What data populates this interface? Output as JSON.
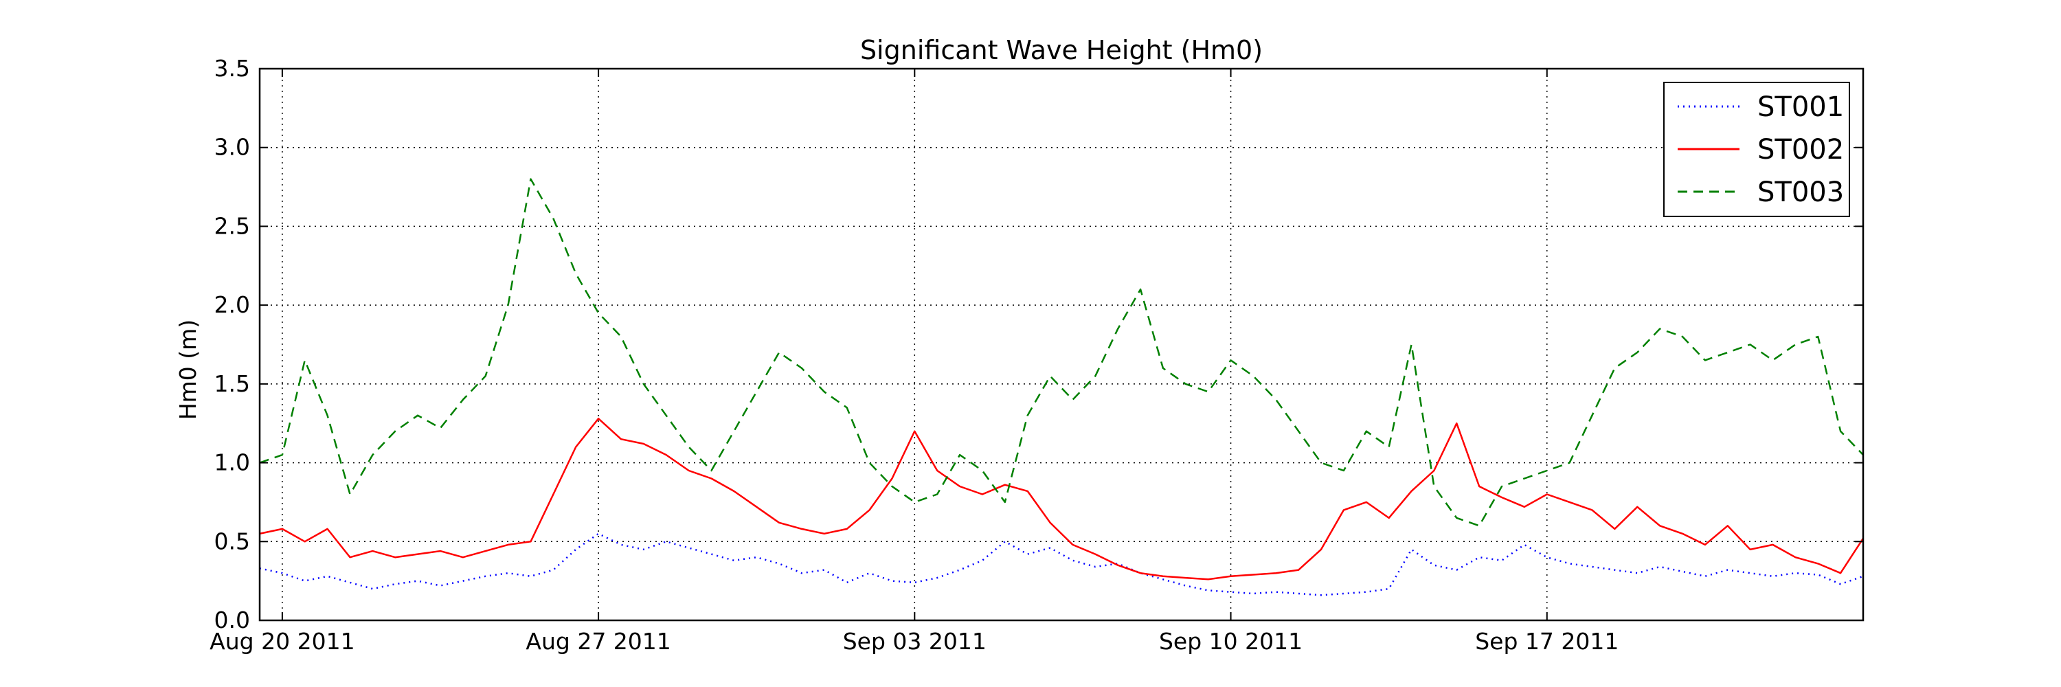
{
  "chart_data": {
    "type": "line",
    "title": "Significant Wave Height (Hm0)",
    "xlabel": "",
    "ylabel": "Hm0 (m)",
    "ylim": [
      0,
      3.5
    ],
    "y_ticks": [
      "0.0",
      "0.5",
      "1.0",
      "1.5",
      "2.0",
      "2.5",
      "3.0",
      "3.5"
    ],
    "xlim": [
      "2011-08-19T12:00",
      "2011-09-24T00:00"
    ],
    "x_ticks": [
      {
        "date": "2011-08-20",
        "label": "Aug 20 2011"
      },
      {
        "date": "2011-08-27",
        "label": "Aug 27 2011"
      },
      {
        "date": "2011-09-03",
        "label": "Sep 03 2011"
      },
      {
        "date": "2011-09-10",
        "label": "Sep 10 2011"
      },
      {
        "date": "2011-09-17",
        "label": "Sep 17 2011"
      }
    ],
    "grid": true,
    "legend_position": "top-right",
    "x": [
      "2011-08-19T12:00",
      "2011-08-20T00:00",
      "2011-08-20T12:00",
      "2011-08-21T00:00",
      "2011-08-21T12:00",
      "2011-08-22T00:00",
      "2011-08-22T12:00",
      "2011-08-23T00:00",
      "2011-08-23T12:00",
      "2011-08-24T00:00",
      "2011-08-24T12:00",
      "2011-08-25T00:00",
      "2011-08-25T12:00",
      "2011-08-26T00:00",
      "2011-08-26T12:00",
      "2011-08-27T00:00",
      "2011-08-27T12:00",
      "2011-08-28T00:00",
      "2011-08-28T12:00",
      "2011-08-29T00:00",
      "2011-08-29T12:00",
      "2011-08-30T00:00",
      "2011-08-30T12:00",
      "2011-08-31T00:00",
      "2011-08-31T12:00",
      "2011-09-01T00:00",
      "2011-09-01T12:00",
      "2011-09-02T00:00",
      "2011-09-02T12:00",
      "2011-09-03T00:00",
      "2011-09-03T12:00",
      "2011-09-04T00:00",
      "2011-09-04T12:00",
      "2011-09-05T00:00",
      "2011-09-05T12:00",
      "2011-09-06T00:00",
      "2011-09-06T12:00",
      "2011-09-07T00:00",
      "2011-09-07T12:00",
      "2011-09-08T00:00",
      "2011-09-08T12:00",
      "2011-09-09T00:00",
      "2011-09-09T12:00",
      "2011-09-10T00:00",
      "2011-09-10T12:00",
      "2011-09-11T00:00",
      "2011-09-11T12:00",
      "2011-09-12T00:00",
      "2011-09-12T12:00",
      "2011-09-13T00:00",
      "2011-09-13T12:00",
      "2011-09-14T00:00",
      "2011-09-14T12:00",
      "2011-09-15T00:00",
      "2011-09-15T12:00",
      "2011-09-16T00:00",
      "2011-09-16T12:00",
      "2011-09-17T00:00",
      "2011-09-17T12:00",
      "2011-09-18T00:00",
      "2011-09-18T12:00",
      "2011-09-19T00:00",
      "2011-09-19T12:00",
      "2011-09-20T00:00",
      "2011-09-20T12:00",
      "2011-09-21T00:00",
      "2011-09-21T12:00",
      "2011-09-22T00:00",
      "2011-09-22T12:00",
      "2011-09-23T00:00",
      "2011-09-23T12:00",
      "2011-09-24T00:00"
    ],
    "series": [
      {
        "name": "ST001",
        "color": "#0000ff",
        "style": "dotted",
        "values": [
          0.33,
          0.3,
          0.25,
          0.28,
          0.24,
          0.2,
          0.23,
          0.25,
          0.22,
          0.25,
          0.28,
          0.3,
          0.28,
          0.32,
          0.45,
          0.55,
          0.48,
          0.45,
          0.5,
          0.46,
          0.42,
          0.38,
          0.4,
          0.36,
          0.3,
          0.32,
          0.24,
          0.3,
          0.25,
          0.24,
          0.27,
          0.32,
          0.38,
          0.5,
          0.42,
          0.46,
          0.38,
          0.34,
          0.36,
          0.3,
          0.26,
          0.22,
          0.19,
          0.18,
          0.17,
          0.18,
          0.17,
          0.16,
          0.17,
          0.18,
          0.2,
          0.45,
          0.35,
          0.32,
          0.4,
          0.38,
          0.48,
          0.4,
          0.36,
          0.34,
          0.32,
          0.3,
          0.34,
          0.31,
          0.28,
          0.32,
          0.3,
          0.28,
          0.3,
          0.29,
          0.23,
          0.28
        ]
      },
      {
        "name": "ST002",
        "color": "#ff0000",
        "style": "solid",
        "values": [
          0.55,
          0.58,
          0.5,
          0.58,
          0.4,
          0.44,
          0.4,
          0.42,
          0.44,
          0.4,
          0.44,
          0.48,
          0.5,
          0.8,
          1.1,
          1.28,
          1.15,
          1.12,
          1.05,
          0.95,
          0.9,
          0.82,
          0.72,
          0.62,
          0.58,
          0.55,
          0.58,
          0.7,
          0.9,
          1.2,
          0.95,
          0.85,
          0.8,
          0.86,
          0.82,
          0.62,
          0.48,
          0.42,
          0.35,
          0.3,
          0.28,
          0.27,
          0.26,
          0.28,
          0.29,
          0.3,
          0.32,
          0.45,
          0.7,
          0.75,
          0.65,
          0.82,
          0.95,
          1.25,
          0.85,
          0.78,
          0.72,
          0.8,
          0.75,
          0.7,
          0.58,
          0.72,
          0.6,
          0.55,
          0.48,
          0.6,
          0.45,
          0.48,
          0.4,
          0.36,
          0.3,
          0.52
        ]
      },
      {
        "name": "ST003",
        "color": "#008000",
        "style": "dashed",
        "values": [
          1.0,
          1.05,
          1.65,
          1.3,
          0.8,
          1.05,
          1.2,
          1.3,
          1.22,
          1.4,
          1.55,
          2.0,
          2.8,
          2.55,
          2.2,
          1.95,
          1.8,
          1.5,
          1.3,
          1.1,
          0.95,
          1.2,
          1.45,
          1.7,
          1.6,
          1.45,
          1.35,
          1.0,
          0.85,
          0.75,
          0.8,
          1.05,
          0.95,
          0.75,
          1.3,
          1.55,
          1.4,
          1.55,
          1.85,
          2.1,
          1.6,
          1.5,
          1.45,
          1.65,
          1.55,
          1.4,
          1.2,
          1.0,
          0.95,
          1.2,
          1.1,
          1.75,
          0.85,
          0.65,
          0.6,
          0.85,
          0.9,
          0.95,
          1.0,
          1.3,
          1.6,
          1.7,
          1.85,
          1.8,
          1.65,
          1.7,
          1.75,
          1.65,
          1.75,
          1.8,
          1.2,
          1.05
        ]
      }
    ]
  }
}
